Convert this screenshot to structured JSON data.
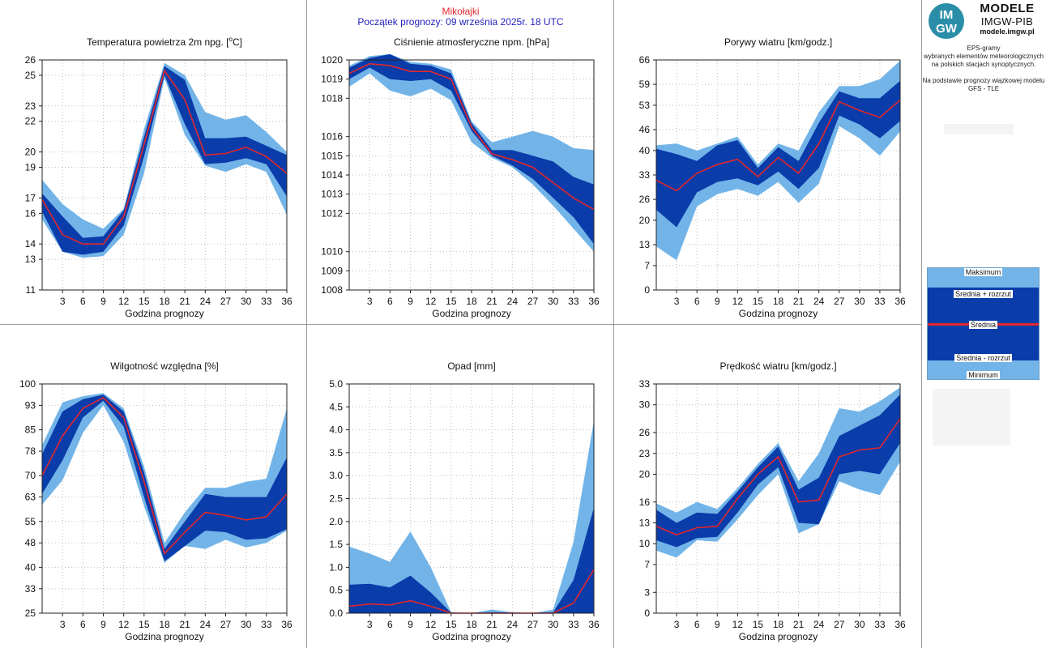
{
  "header": {
    "station": "Mikołajki",
    "forecast_start": "Początek prognozy: 09 września 2025r. 18 UTC"
  },
  "logo": {
    "circle_top": "IM",
    "circle_bottom": "GW",
    "line1": "MODELE",
    "line2": "IMGW-PIB",
    "line3": "modele.imgw.pl"
  },
  "info": {
    "line1": "EPS-gramy",
    "line2": "wybranych elementów meteorologicznych",
    "line3": "na polskich stacjach  synoptycznych.",
    "line4": "Na podstawie prognozy wiązkowej modelu",
    "line5": "GFS - TLE"
  },
  "legend": {
    "max": "Maksimum",
    "mean_plus": "Średnia + rozrzut",
    "mean": "Średnia",
    "mean_minus": "Średnia - rozrzut",
    "min": "Minimum"
  },
  "colors": {
    "outer_band": "#72b4e8",
    "inner_band": "#0a3caa",
    "mean_line": "#e4262a",
    "grid": "#bdbdbd"
  },
  "chart_data": [
    {
      "type": "area",
      "title_main": "Temperatura powietrza 2m npg. [",
      "title_sup": "o",
      "title_end": "C]",
      "xlabel": "Godzina prognozy",
      "x": [
        0,
        3,
        6,
        9,
        12,
        15,
        18,
        21,
        24,
        27,
        30,
        33,
        36
      ],
      "xticks": [
        3,
        6,
        9,
        12,
        15,
        18,
        21,
        24,
        27,
        30,
        33,
        36
      ],
      "ylim": [
        11,
        26
      ],
      "yticks": [
        11,
        13,
        14,
        16,
        17,
        19,
        20,
        22,
        23,
        25,
        26
      ],
      "ytick_labels": [
        "11",
        "13",
        "14",
        "16",
        "17",
        "19",
        "20",
        "22",
        "23",
        "25",
        "26"
      ],
      "series": {
        "max": [
          18.2,
          16.6,
          15.6,
          15.0,
          16.3,
          21.5,
          25.8,
          25.0,
          22.6,
          22.1,
          22.4,
          21.3,
          20.0
        ],
        "mean_plus": [
          17.3,
          15.8,
          14.4,
          14.5,
          16.2,
          21.0,
          25.6,
          24.7,
          20.9,
          20.9,
          21.0,
          20.4,
          19.8
        ],
        "mean": [
          16.9,
          14.6,
          14.0,
          14.0,
          15.8,
          20.5,
          25.3,
          23.4,
          19.8,
          19.9,
          20.3,
          19.7,
          18.6
        ],
        "mean_minus": [
          16.1,
          13.5,
          13.3,
          13.5,
          15.2,
          19.7,
          25.0,
          21.8,
          19.2,
          19.3,
          19.6,
          19.2,
          17.1
        ],
        "min": [
          15.6,
          13.5,
          13.1,
          13.2,
          14.6,
          18.6,
          24.8,
          21.1,
          19.1,
          18.7,
          19.2,
          18.7,
          15.9
        ]
      }
    },
    {
      "type": "area",
      "title_main": "Ciśnienie atmosferyczne npm. [hPa]",
      "xlabel": "Godzina prognozy",
      "x": [
        0,
        3,
        6,
        9,
        12,
        15,
        18,
        21,
        24,
        27,
        30,
        33,
        36
      ],
      "xticks": [
        3,
        6,
        9,
        12,
        15,
        18,
        21,
        24,
        27,
        30,
        33,
        36
      ],
      "ylim": [
        1008,
        1020
      ],
      "yticks": [
        1008,
        1009,
        1010,
        1012,
        1013,
        1014,
        1015,
        1016,
        1018,
        1019,
        1020
      ],
      "ytick_labels": [
        "1008",
        "1009",
        "1010",
        "1012",
        "1013",
        "1014",
        "1015",
        "1016",
        "1018",
        "1019",
        "1020"
      ],
      "series": {
        "max": [
          1019.7,
          1020.2,
          1020.3,
          1019.9,
          1019.8,
          1019.5,
          1016.8,
          1015.7,
          1016.0,
          1016.3,
          1016.0,
          1015.4,
          1015.3
        ],
        "mean_plus": [
          1019.6,
          1020.1,
          1020.3,
          1019.8,
          1019.7,
          1019.3,
          1016.7,
          1015.3,
          1015.3,
          1015.0,
          1014.7,
          1013.9,
          1013.5
        ],
        "mean": [
          1019.3,
          1019.8,
          1019.7,
          1019.4,
          1019.4,
          1019.0,
          1016.5,
          1015.1,
          1014.8,
          1014.4,
          1013.6,
          1012.8,
          1012.2
        ],
        "mean_minus": [
          1019.0,
          1019.6,
          1019.0,
          1018.9,
          1019.0,
          1018.4,
          1016.3,
          1015.0,
          1014.5,
          1013.8,
          1012.8,
          1011.8,
          1010.4
        ],
        "min": [
          1018.6,
          1019.3,
          1018.4,
          1018.1,
          1018.5,
          1017.9,
          1015.7,
          1014.9,
          1014.4,
          1013.5,
          1012.4,
          1011.2,
          1010.0
        ]
      }
    },
    {
      "type": "area",
      "title_main": "Porywy wiatru [km/godz.]",
      "xlabel": "Godzina prognozy",
      "x": [
        0,
        3,
        6,
        9,
        12,
        15,
        18,
        21,
        24,
        27,
        30,
        33,
        36
      ],
      "xticks": [
        3,
        6,
        9,
        12,
        15,
        18,
        21,
        24,
        27,
        30,
        33,
        36
      ],
      "ylim": [
        0,
        66
      ],
      "yticks": [
        0,
        7,
        13,
        20,
        26,
        33,
        40,
        46,
        53,
        59,
        66
      ],
      "ytick_labels": [
        "0",
        "7",
        "13",
        "20",
        "26",
        "33",
        "40",
        "46",
        "53",
        "59",
        "66"
      ],
      "series": {
        "max": [
          41.5,
          42,
          40,
          42,
          44,
          36,
          42,
          40,
          51,
          58.5,
          58.5,
          60.5,
          65.8
        ],
        "mean_plus": [
          40.5,
          39,
          37,
          41.5,
          43,
          35,
          41,
          37,
          48,
          57,
          55,
          55,
          60
        ],
        "mean": [
          31.5,
          28.5,
          33.5,
          36,
          37.5,
          32.5,
          38,
          33.5,
          42,
          54,
          51.5,
          49.5,
          54.5
        ],
        "mean_minus": [
          23,
          18,
          28,
          31,
          32,
          30,
          34,
          29,
          35,
          50,
          47.5,
          43.5,
          48.5
        ],
        "min": [
          12.5,
          8.5,
          24,
          27.5,
          29,
          27,
          31,
          25,
          30.5,
          47,
          43.5,
          38.5,
          45.5
        ]
      }
    },
    {
      "type": "area",
      "title_main": "Wilgotność względna [%]",
      "xlabel": "Godzina prognozy",
      "x": [
        0,
        3,
        6,
        9,
        12,
        15,
        18,
        21,
        24,
        27,
        30,
        33,
        36
      ],
      "xticks": [
        3,
        6,
        9,
        12,
        15,
        18,
        21,
        24,
        27,
        30,
        33,
        36
      ],
      "ylim": [
        25,
        100
      ],
      "yticks": [
        25,
        33,
        40,
        48,
        55,
        63,
        70,
        78,
        85,
        93,
        100
      ],
      "ytick_labels": [
        "25",
        "33",
        "40",
        "48",
        "55",
        "63",
        "70",
        "78",
        "85",
        "93",
        "100"
      ],
      "series": {
        "max": [
          80,
          94,
          96,
          97,
          92,
          73,
          48,
          58,
          66,
          66,
          68,
          69,
          92
        ],
        "mean_plus": [
          77,
          91,
          95,
          96.5,
          91,
          71,
          46,
          55,
          64,
          63,
          63,
          63,
          76
        ],
        "mean": [
          70,
          83,
          92,
          95.5,
          89,
          68,
          44.5,
          51.5,
          58,
          57,
          55.5,
          56.5,
          64
        ],
        "mean_minus": [
          64,
          75,
          89,
          94.5,
          86,
          63,
          42,
          47,
          52,
          51.5,
          49,
          49.5,
          52.5
        ],
        "min": [
          60.5,
          68.5,
          84,
          93,
          81,
          60,
          41.5,
          47,
          46,
          49,
          46.5,
          48,
          52
        ]
      }
    },
    {
      "type": "area",
      "title_main": "Opad [mm]",
      "xlabel": "Godzina prognozy",
      "x": [
        0,
        3,
        6,
        9,
        12,
        15,
        18,
        21,
        24,
        27,
        30,
        33,
        36
      ],
      "xticks": [
        3,
        6,
        9,
        12,
        15,
        18,
        21,
        24,
        27,
        30,
        33,
        36
      ],
      "ylim": [
        0,
        5
      ],
      "yticks": [
        0,
        0.5,
        1,
        1.5,
        2,
        2.5,
        3,
        3.5,
        4,
        4.5,
        5
      ],
      "ytick_labels": [
        "0.0",
        "0.5",
        "1.0",
        "1.5",
        "2.0",
        "2.5",
        "3.0",
        "3.5",
        "4.0",
        "4.5",
        "5.0"
      ],
      "series": {
        "max": [
          1.45,
          1.3,
          1.12,
          1.78,
          1.0,
          0.02,
          0,
          0.08,
          0.02,
          0,
          0.08,
          1.55,
          4.2
        ],
        "mean_plus": [
          0.62,
          0.64,
          0.56,
          0.82,
          0.45,
          0.01,
          0,
          0.02,
          0.01,
          0,
          0.02,
          0.72,
          2.3
        ],
        "mean": [
          0.15,
          0.2,
          0.18,
          0.27,
          0.15,
          0,
          0,
          0,
          0,
          0,
          0,
          0.22,
          0.95
        ],
        "mean_minus": [
          0,
          0,
          0,
          0,
          0,
          0,
          0,
          0,
          0,
          0,
          0,
          0,
          0
        ],
        "min": [
          0,
          0,
          0,
          0,
          0,
          0,
          0,
          0,
          0,
          0,
          0,
          0,
          0
        ]
      }
    },
    {
      "type": "area",
      "title_main": "Prędkość wiatru [km/godz.]",
      "xlabel": "Godzina prognozy",
      "x": [
        0,
        3,
        6,
        9,
        12,
        15,
        18,
        21,
        24,
        27,
        30,
        33,
        36
      ],
      "xticks": [
        3,
        6,
        9,
        12,
        15,
        18,
        21,
        24,
        27,
        30,
        33,
        36
      ],
      "ylim": [
        0,
        33
      ],
      "yticks": [
        0,
        3,
        7,
        10,
        13,
        16,
        20,
        23,
        26,
        30,
        33
      ],
      "ytick_labels": [
        "0",
        "3",
        "7",
        "10",
        "13",
        "16",
        "20",
        "23",
        "26",
        "30",
        "33"
      ],
      "series": {
        "max": [
          15.8,
          14.5,
          16,
          15,
          18,
          21.5,
          24.5,
          19,
          23,
          29.5,
          29,
          30.5,
          32.5
        ],
        "mean_plus": [
          14.9,
          13,
          14.5,
          14.3,
          17.5,
          21,
          24,
          17.8,
          19.5,
          25.5,
          27,
          28.5,
          31.5
        ],
        "mean": [
          12.5,
          11.3,
          12.3,
          12.5,
          16.5,
          20,
          22.5,
          16,
          16.3,
          22.5,
          23.5,
          23.8,
          28
        ],
        "mean_minus": [
          10.5,
          9.5,
          10.8,
          11,
          14.5,
          18.5,
          21,
          13,
          12.8,
          20,
          20.5,
          20,
          24.5
        ],
        "min": [
          9,
          8,
          10.5,
          10.3,
          13.5,
          17,
          20,
          11.5,
          12.8,
          19,
          17.8,
          17,
          21.8
        ]
      }
    }
  ]
}
